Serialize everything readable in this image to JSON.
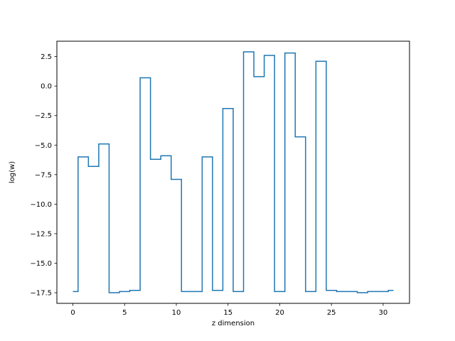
{
  "chart_data": {
    "type": "line",
    "style": "step",
    "xlabel": "z dimension",
    "ylabel": "log(w)",
    "xlim": [
      -1.55,
      32.55
    ],
    "ylim": [
      -18.4,
      3.8
    ],
    "xticks": [
      0,
      5,
      10,
      15,
      20,
      25,
      30
    ],
    "yticks": [
      2.5,
      0.0,
      -2.5,
      -5.0,
      -7.5,
      -10.0,
      -12.5,
      -15.0,
      -17.5
    ],
    "ytick_labels": [
      "2.5",
      "0.0",
      "−2.5",
      "−5.0",
      "−7.5",
      "−10.0",
      "−12.5",
      "−15.0",
      "−17.5"
    ],
    "grid": false,
    "series": [
      {
        "color": "#1f77b4",
        "x": [
          0,
          1,
          2,
          3,
          4,
          5,
          6,
          7,
          8,
          9,
          10,
          11,
          12,
          13,
          14,
          15,
          16,
          17,
          18,
          19,
          20,
          21,
          22,
          23,
          24,
          25,
          26,
          27,
          28,
          29,
          30,
          31
        ],
        "y": [
          -17.4,
          -6.0,
          -6.8,
          -4.9,
          -17.5,
          -17.4,
          -17.3,
          0.7,
          -6.2,
          -5.9,
          -7.9,
          -17.4,
          -17.4,
          -6.0,
          -17.3,
          -1.9,
          -17.4,
          2.9,
          0.8,
          2.6,
          -17.4,
          2.8,
          -4.3,
          -17.4,
          2.1,
          -17.3,
          -17.4,
          -17.4,
          -17.5,
          -17.4,
          -17.4,
          -17.3
        ]
      }
    ]
  }
}
